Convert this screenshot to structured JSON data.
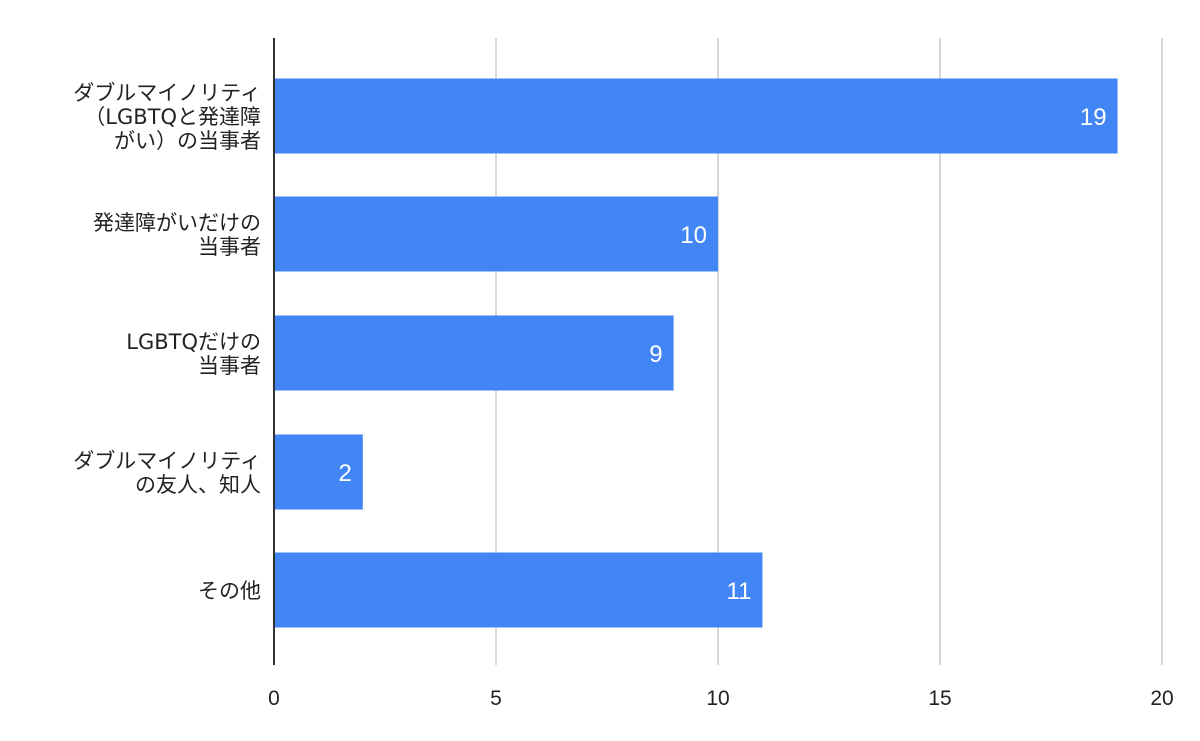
{
  "chart_data": {
    "type": "bar",
    "orientation": "horizontal",
    "title": "",
    "xlabel": "",
    "ylabel": "",
    "categories": [
      [
        "ダブルマイノリティ",
        "（LGBTQと発達障",
        "がい）の当事者"
      ],
      [
        "発達障がいだけの",
        "当事者"
      ],
      [
        "LGBTQだけの",
        "当事者"
      ],
      [
        "ダブルマイノリティ",
        "の友人、知人"
      ],
      [
        "その他"
      ]
    ],
    "values": [
      19,
      10,
      9,
      2,
      11
    ],
    "xlim": [
      0,
      20
    ],
    "ticks": [
      0,
      5,
      10,
      15,
      20
    ],
    "grid": true,
    "data_labels": true,
    "colors": {
      "bar": "#4285f4",
      "grid": "#cccccc",
      "axis": "#333333",
      "value_text": "#ffffff",
      "text": "#222222"
    }
  }
}
